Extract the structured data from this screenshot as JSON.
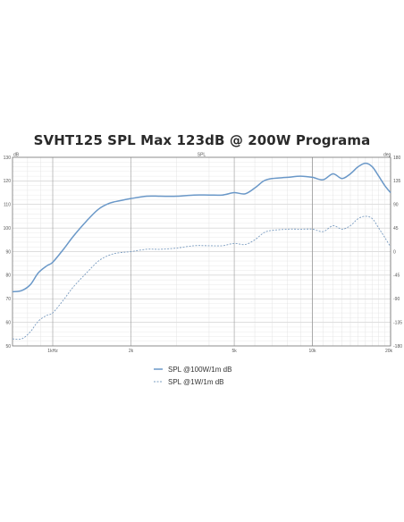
{
  "chart_data": {
    "type": "line",
    "title": "SVHT125 SPL Max 123dB @ 200W Programa",
    "subtitle": "SPL",
    "ylabel": "dB",
    "y2label": "deg",
    "xscale": "log",
    "xlim": [
      700,
      20000
    ],
    "ylim": [
      50,
      130
    ],
    "y2lim": [
      -180,
      180
    ],
    "grid": true,
    "legend_position": "bottom-center",
    "x_ticks": [
      {
        "value": 1000,
        "label": "1kHz"
      },
      {
        "value": 2000,
        "label": "2k"
      },
      {
        "value": 5000,
        "label": "5k"
      },
      {
        "value": 10000,
        "label": "10k"
      },
      {
        "value": 20000,
        "label": "20k"
      }
    ],
    "y_ticks": [
      50,
      60,
      70,
      80,
      90,
      100,
      110,
      120,
      130
    ],
    "y2_ticks": [
      -180,
      -135,
      -90,
      -45,
      0,
      45,
      90,
      135,
      180
    ],
    "series": [
      {
        "name": "SPL @100W/1m dB",
        "color": "#6a98c8",
        "style": "solid",
        "x": [
          700,
          760,
          820,
          880,
          950,
          1000,
          1100,
          1200,
          1350,
          1500,
          1650,
          1800,
          2000,
          2300,
          2600,
          3000,
          3500,
          4000,
          4500,
          5000,
          5500,
          6000,
          6500,
          7000,
          8000,
          9000,
          10000,
          11000,
          12000,
          13000,
          14000,
          15000,
          16000,
          17000,
          18000,
          19000,
          20000
        ],
        "y": [
          73,
          73.5,
          76,
          81,
          84,
          85.5,
          91,
          96.5,
          103,
          108,
          110.5,
          111.5,
          112.5,
          113.5,
          113.5,
          113.5,
          114,
          114,
          114,
          115,
          114.5,
          117,
          120,
          121,
          121.5,
          122,
          121.5,
          120.5,
          123,
          121,
          123,
          126,
          127.5,
          126,
          122,
          118,
          115
        ]
      },
      {
        "name": "SPL @1W/1m dB",
        "color": "#7a9cc0",
        "style": "dashed",
        "x": [
          700,
          760,
          820,
          880,
          950,
          1000,
          1100,
          1200,
          1350,
          1500,
          1650,
          1800,
          2000,
          2300,
          2600,
          3000,
          3500,
          4000,
          4500,
          5000,
          5500,
          6000,
          6500,
          7000,
          8000,
          9000,
          10000,
          11000,
          12000,
          13000,
          14000,
          15000,
          16000,
          17000,
          18000,
          19000,
          20000
        ],
        "y": [
          53,
          53,
          56,
          60.5,
          63,
          64,
          69.5,
          75,
          81,
          86,
          88.5,
          89.5,
          90,
          91,
          91,
          91.5,
          92.5,
          92.5,
          92.5,
          93.5,
          93,
          95,
          98,
          99,
          99.5,
          99.5,
          99.5,
          98.5,
          101,
          99.5,
          101,
          104,
          105,
          104,
          100,
          96,
          92
        ]
      }
    ]
  }
}
